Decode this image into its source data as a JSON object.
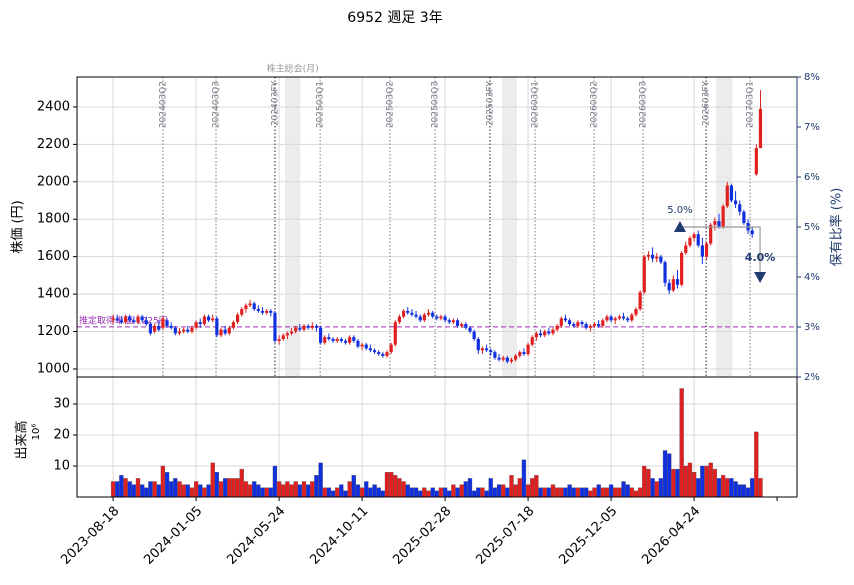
{
  "chart_data": {
    "type": "candlestick",
    "title": "6952 週足 3年",
    "ylabel": "株価 (円)",
    "y2label": "保有比率 (%)",
    "vlabel": "出来高",
    "vexp": "10⁶",
    "xlim": [
      -8.7,
      164.8
    ],
    "xticks": [
      {
        "value": 0,
        "label": "2023-08-18"
      },
      {
        "value": 20,
        "label": "2024-01-05"
      },
      {
        "value": 40,
        "label": "2024-05-24"
      },
      {
        "value": 60,
        "label": "2024-10-11"
      },
      {
        "value": 80,
        "label": "2025-02-28"
      },
      {
        "value": 100,
        "label": "2025-07-18"
      },
      {
        "value": 120,
        "label": "2025-12-05"
      },
      {
        "value": 140,
        "label": "2026-04-24"
      }
    ],
    "xminor_ticks": [
      160
    ],
    "ylim": [
      957,
      2560
    ],
    "yticks": [
      1000,
      1200,
      1400,
      1600,
      1800,
      2000,
      2200,
      2400
    ],
    "y2lim": [
      2,
      8
    ],
    "y2ticks": [
      {
        "value": 2,
        "label": "2%"
      },
      {
        "value": 3,
        "label": "3%"
      },
      {
        "value": 4,
        "label": "4%"
      },
      {
        "value": 5,
        "label": "5%"
      },
      {
        "value": 6,
        "label": "6%"
      },
      {
        "value": 7,
        "label": "7%"
      },
      {
        "value": 8,
        "label": "8%"
      }
    ],
    "vlim": [
      0,
      38.7
    ],
    "vticks": [
      10,
      20,
      30
    ],
    "grid": true,
    "up_color": "#e02020",
    "down_color": "#1030e0",
    "candles": [
      [
        1260,
        1290,
        1240,
        1270
      ],
      [
        1270,
        1290,
        1250,
        1260
      ],
      [
        1260,
        1280,
        1240,
        1250
      ],
      [
        1250,
        1290,
        1240,
        1280
      ],
      [
        1280,
        1290,
        1250,
        1260
      ],
      [
        1260,
        1280,
        1240,
        1250
      ],
      [
        1250,
        1290,
        1240,
        1280
      ],
      [
        1280,
        1290,
        1250,
        1260
      ],
      [
        1260,
        1280,
        1230,
        1240
      ],
      [
        1240,
        1250,
        1180,
        1190
      ],
      [
        1200,
        1240,
        1190,
        1230
      ],
      [
        1230,
        1260,
        1200,
        1210
      ],
      [
        1220,
        1280,
        1210,
        1270
      ],
      [
        1260,
        1270,
        1220,
        1230
      ],
      [
        1230,
        1250,
        1210,
        1220
      ],
      [
        1220,
        1230,
        1180,
        1190
      ],
      [
        1190,
        1220,
        1180,
        1200
      ],
      [
        1200,
        1220,
        1190,
        1210
      ],
      [
        1210,
        1230,
        1190,
        1200
      ],
      [
        1200,
        1230,
        1190,
        1220
      ],
      [
        1220,
        1260,
        1210,
        1250
      ],
      [
        1250,
        1270,
        1220,
        1240
      ],
      [
        1240,
        1290,
        1230,
        1280
      ],
      [
        1280,
        1290,
        1250,
        1260
      ],
      [
        1260,
        1290,
        1250,
        1270
      ],
      [
        1270,
        1280,
        1170,
        1180
      ],
      [
        1180,
        1220,
        1170,
        1210
      ],
      [
        1210,
        1230,
        1180,
        1190
      ],
      [
        1190,
        1230,
        1180,
        1220
      ],
      [
        1220,
        1260,
        1210,
        1250
      ],
      [
        1250,
        1300,
        1240,
        1290
      ],
      [
        1290,
        1330,
        1280,
        1320
      ],
      [
        1320,
        1350,
        1300,
        1340
      ],
      [
        1340,
        1370,
        1330,
        1350
      ],
      [
        1350,
        1360,
        1310,
        1320
      ],
      [
        1320,
        1340,
        1300,
        1310
      ],
      [
        1310,
        1330,
        1290,
        1300
      ],
      [
        1300,
        1320,
        1290,
        1310
      ],
      [
        1310,
        1320,
        1280,
        1300
      ],
      [
        1300,
        1310,
        1140,
        1150
      ],
      [
        1150,
        1180,
        1130,
        1160
      ],
      [
        1160,
        1190,
        1150,
        1180
      ],
      [
        1180,
        1200,
        1160,
        1190
      ],
      [
        1190,
        1220,
        1180,
        1200
      ],
      [
        1200,
        1230,
        1190,
        1220
      ],
      [
        1220,
        1240,
        1200,
        1210
      ],
      [
        1210,
        1240,
        1200,
        1230
      ],
      [
        1230,
        1240,
        1210,
        1220
      ],
      [
        1220,
        1250,
        1210,
        1230
      ],
      [
        1230,
        1240,
        1200,
        1220
      ],
      [
        1220,
        1230,
        1130,
        1140
      ],
      [
        1140,
        1180,
        1130,
        1170
      ],
      [
        1170,
        1190,
        1150,
        1160
      ],
      [
        1160,
        1170,
        1140,
        1150
      ],
      [
        1150,
        1170,
        1140,
        1160
      ],
      [
        1160,
        1170,
        1140,
        1150
      ],
      [
        1150,
        1160,
        1130,
        1140
      ],
      [
        1140,
        1180,
        1130,
        1170
      ],
      [
        1170,
        1180,
        1140,
        1150
      ],
      [
        1150,
        1160,
        1110,
        1120
      ],
      [
        1120,
        1140,
        1100,
        1130
      ],
      [
        1130,
        1140,
        1100,
        1110
      ],
      [
        1110,
        1130,
        1090,
        1100
      ],
      [
        1100,
        1110,
        1080,
        1090
      ],
      [
        1090,
        1100,
        1070,
        1080
      ],
      [
        1080,
        1090,
        1060,
        1070
      ],
      [
        1070,
        1100,
        1060,
        1090
      ],
      [
        1090,
        1140,
        1080,
        1130
      ],
      [
        1130,
        1260,
        1120,
        1250
      ],
      [
        1250,
        1290,
        1240,
        1280
      ],
      [
        1280,
        1320,
        1270,
        1310
      ],
      [
        1310,
        1330,
        1290,
        1300
      ],
      [
        1300,
        1320,
        1280,
        1290
      ],
      [
        1290,
        1310,
        1270,
        1280
      ],
      [
        1280,
        1290,
        1250,
        1260
      ],
      [
        1260,
        1300,
        1250,
        1290
      ],
      [
        1290,
        1320,
        1280,
        1300
      ],
      [
        1300,
        1310,
        1270,
        1280
      ],
      [
        1280,
        1290,
        1260,
        1270
      ],
      [
        1270,
        1290,
        1260,
        1280
      ],
      [
        1280,
        1290,
        1250,
        1260
      ],
      [
        1260,
        1270,
        1240,
        1250
      ],
      [
        1250,
        1270,
        1240,
        1260
      ],
      [
        1260,
        1270,
        1220,
        1230
      ],
      [
        1230,
        1250,
        1220,
        1240
      ],
      [
        1240,
        1250,
        1210,
        1220
      ],
      [
        1220,
        1230,
        1190,
        1200
      ],
      [
        1200,
        1210,
        1150,
        1160
      ],
      [
        1160,
        1170,
        1080,
        1100
      ],
      [
        1100,
        1120,
        1080,
        1110
      ],
      [
        1110,
        1130,
        1090,
        1100
      ],
      [
        1100,
        1110,
        1070,
        1090
      ],
      [
        1090,
        1100,
        1050,
        1060
      ],
      [
        1060,
        1080,
        1040,
        1050
      ],
      [
        1050,
        1070,
        1040,
        1060
      ],
      [
        1060,
        1070,
        1030,
        1040
      ],
      [
        1040,
        1060,
        1030,
        1050
      ],
      [
        1050,
        1080,
        1040,
        1070
      ],
      [
        1070,
        1100,
        1060,
        1090
      ],
      [
        1090,
        1110,
        1070,
        1080
      ],
      [
        1080,
        1140,
        1070,
        1130
      ],
      [
        1130,
        1180,
        1120,
        1170
      ],
      [
        1170,
        1200,
        1150,
        1190
      ],
      [
        1190,
        1210,
        1170,
        1180
      ],
      [
        1180,
        1210,
        1170,
        1200
      ],
      [
        1200,
        1220,
        1180,
        1190
      ],
      [
        1190,
        1220,
        1180,
        1210
      ],
      [
        1210,
        1240,
        1200,
        1230
      ],
      [
        1230,
        1280,
        1220,
        1270
      ],
      [
        1270,
        1290,
        1250,
        1260
      ],
      [
        1260,
        1270,
        1230,
        1240
      ],
      [
        1240,
        1250,
        1220,
        1230
      ],
      [
        1230,
        1260,
        1220,
        1250
      ],
      [
        1250,
        1260,
        1230,
        1240
      ],
      [
        1240,
        1250,
        1210,
        1220
      ],
      [
        1220,
        1240,
        1200,
        1230
      ],
      [
        1230,
        1250,
        1220,
        1240
      ],
      [
        1240,
        1260,
        1220,
        1230
      ],
      [
        1230,
        1270,
        1220,
        1260
      ],
      [
        1260,
        1290,
        1250,
        1280
      ],
      [
        1280,
        1290,
        1250,
        1260
      ],
      [
        1260,
        1280,
        1240,
        1270
      ],
      [
        1270,
        1290,
        1260,
        1280
      ],
      [
        1280,
        1300,
        1260,
        1270
      ],
      [
        1270,
        1280,
        1250,
        1260
      ],
      [
        1260,
        1300,
        1250,
        1290
      ],
      [
        1290,
        1330,
        1280,
        1320
      ],
      [
        1320,
        1420,
        1310,
        1410
      ],
      [
        1410,
        1610,
        1400,
        1600
      ],
      [
        1600,
        1630,
        1580,
        1610
      ],
      [
        1610,
        1650,
        1570,
        1590
      ],
      [
        1590,
        1620,
        1570,
        1600
      ],
      [
        1600,
        1610,
        1560,
        1570
      ],
      [
        1570,
        1580,
        1440,
        1460
      ],
      [
        1460,
        1480,
        1400,
        1420
      ],
      [
        1420,
        1500,
        1410,
        1480
      ],
      [
        1480,
        1530,
        1430,
        1450
      ],
      [
        1450,
        1630,
        1440,
        1620
      ],
      [
        1620,
        1680,
        1610,
        1660
      ],
      [
        1660,
        1710,
        1650,
        1700
      ],
      [
        1700,
        1730,
        1680,
        1720
      ],
      [
        1720,
        1740,
        1650,
        1660
      ],
      [
        1660,
        1700,
        1560,
        1600
      ],
      [
        1600,
        1680,
        1580,
        1670
      ],
      [
        1670,
        1780,
        1660,
        1770
      ],
      [
        1770,
        1810,
        1740,
        1790
      ],
      [
        1790,
        1830,
        1750,
        1760
      ],
      [
        1760,
        1880,
        1750,
        1870
      ],
      [
        1870,
        2000,
        1860,
        1980
      ],
      [
        1980,
        1990,
        1890,
        1900
      ],
      [
        1900,
        1950,
        1860,
        1880
      ],
      [
        1880,
        1900,
        1820,
        1840
      ],
      [
        1840,
        1850,
        1770,
        1780
      ],
      [
        1780,
        1800,
        1720,
        1740
      ],
      [
        1740,
        1760,
        1700,
        1720
      ],
      [
        2040,
        2200,
        2030,
        2180
      ],
      [
        2180,
        2490,
        2180,
        2390
      ]
    ],
    "volumes": [
      5,
      5,
      7,
      6,
      5,
      4,
      6,
      4,
      3,
      5,
      5,
      4,
      10,
      8,
      5,
      6,
      5,
      4,
      4,
      3,
      5,
      4,
      3,
      4,
      11,
      8,
      5,
      6,
      6,
      6,
      6,
      9,
      5,
      4,
      5,
      4,
      3,
      3,
      3,
      10,
      5,
      4,
      5,
      4,
      5,
      4,
      5,
      4,
      5,
      7,
      11,
      3,
      3,
      2,
      3,
      4,
      2,
      5,
      7,
      4,
      3,
      5,
      3,
      4,
      3,
      2,
      8,
      8,
      7,
      6,
      5,
      4,
      3,
      3,
      2,
      3,
      2,
      3,
      2,
      3,
      3,
      2,
      4,
      3,
      4,
      5,
      6,
      2,
      3,
      3,
      2,
      6,
      3,
      4,
      4,
      3,
      7,
      4,
      6,
      12,
      4,
      6,
      7,
      3,
      3,
      3,
      4,
      3,
      3,
      3,
      4,
      3,
      3,
      3,
      3,
      2,
      3,
      4,
      3,
      3,
      4,
      3,
      3,
      5,
      4,
      3,
      2,
      3,
      10,
      9,
      6,
      5,
      6,
      15,
      14,
      9,
      9,
      35,
      10,
      11,
      8,
      6,
      10,
      10,
      11,
      9,
      6,
      7,
      6,
      6,
      5,
      4,
      4,
      3,
      6,
      21,
      6
    ],
    "cost": {
      "value": 1225,
      "label": "推定取得単価 1225円",
      "color": "#9b30b0"
    },
    "events": [
      {
        "x": 12.0,
        "label": "202403Q2"
      },
      {
        "x": 24.8,
        "label": "202403Q3"
      },
      {
        "x": 39.0,
        "label": "202403FY",
        "fy": true
      },
      {
        "x": 49.9,
        "label": "202503Q1"
      },
      {
        "x": 66.7,
        "label": "202503Q2"
      },
      {
        "x": 77.6,
        "label": "202503Q3"
      },
      {
        "x": 90.8,
        "label": "202503FY",
        "fy": true
      },
      {
        "x": 101.7,
        "label": "202603Q1"
      },
      {
        "x": 115.9,
        "label": "202603Q2"
      },
      {
        "x": 127.7,
        "label": "202603Q3"
      },
      {
        "x": 142.9,
        "label": "202603FY",
        "fy": true
      },
      {
        "x": 153.5,
        "label": "202703Q1"
      }
    ],
    "agm_label": "株主総会(月)",
    "agm_bands": [
      [
        41.4,
        45.1
      ],
      [
        93.7,
        97.3
      ],
      [
        145.3,
        149.2
      ]
    ],
    "holding": {
      "x": [
        136.6,
        155.9
      ],
      "values": [
        5.0,
        4.0
      ],
      "value_labels": [
        "5.0%",
        "4.0%"
      ],
      "color": "#1f3a6e"
    }
  }
}
